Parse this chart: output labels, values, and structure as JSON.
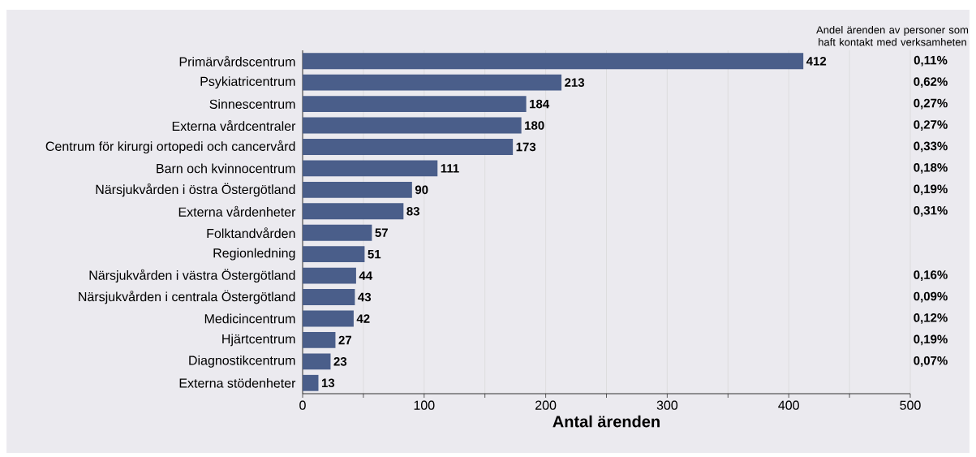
{
  "chart_data": {
    "type": "bar",
    "orientation": "horizontal",
    "categories": [
      "Primärvårdscentrum",
      "Psykiatricentrum",
      "Sinnescentrum",
      "Externa vårdcentraler",
      "Centrum för kirurgi ortopedi och cancervård",
      "Barn och kvinnocentrum",
      "Närsjukvården i östra Östergötland",
      "Externa vårdenheter",
      "Folktandvården",
      "Regionledning",
      "Närsjukvården i västra Östergötland",
      "Närsjukvården i centrala Östergötland",
      "Medicincentrum",
      "Hjärtcentrum",
      "Diagnostikcentrum",
      "Externa stödenheter"
    ],
    "values": [
      412,
      213,
      184,
      180,
      173,
      111,
      90,
      83,
      57,
      51,
      44,
      43,
      42,
      27,
      23,
      13
    ],
    "color": "#4a5e8a",
    "data_labels": true,
    "xlabel": "Antal ärenden",
    "xlim": [
      0,
      500
    ],
    "xticks": [
      0,
      {
        "value": 50,
        "label": null
      },
      100,
      {
        "value": 150,
        "label": null
      },
      200,
      {
        "value": 250,
        "label": null
      },
      300,
      {
        "value": 350,
        "label": null
      },
      400,
      {
        "value": 450,
        "label": null
      },
      500
    ],
    "grid": "x",
    "annotations": [
      "Andel ärenden av personer som haft kontakt med verksamheten",
      "0,11%",
      "0,62%",
      "0,27%",
      "0,27%",
      "0,33%",
      "0,18%",
      "0,19%",
      "0,31%",
      "0,16%",
      "0,09%",
      "0,12%",
      "0,19%",
      "0,07%"
    ]
  }
}
